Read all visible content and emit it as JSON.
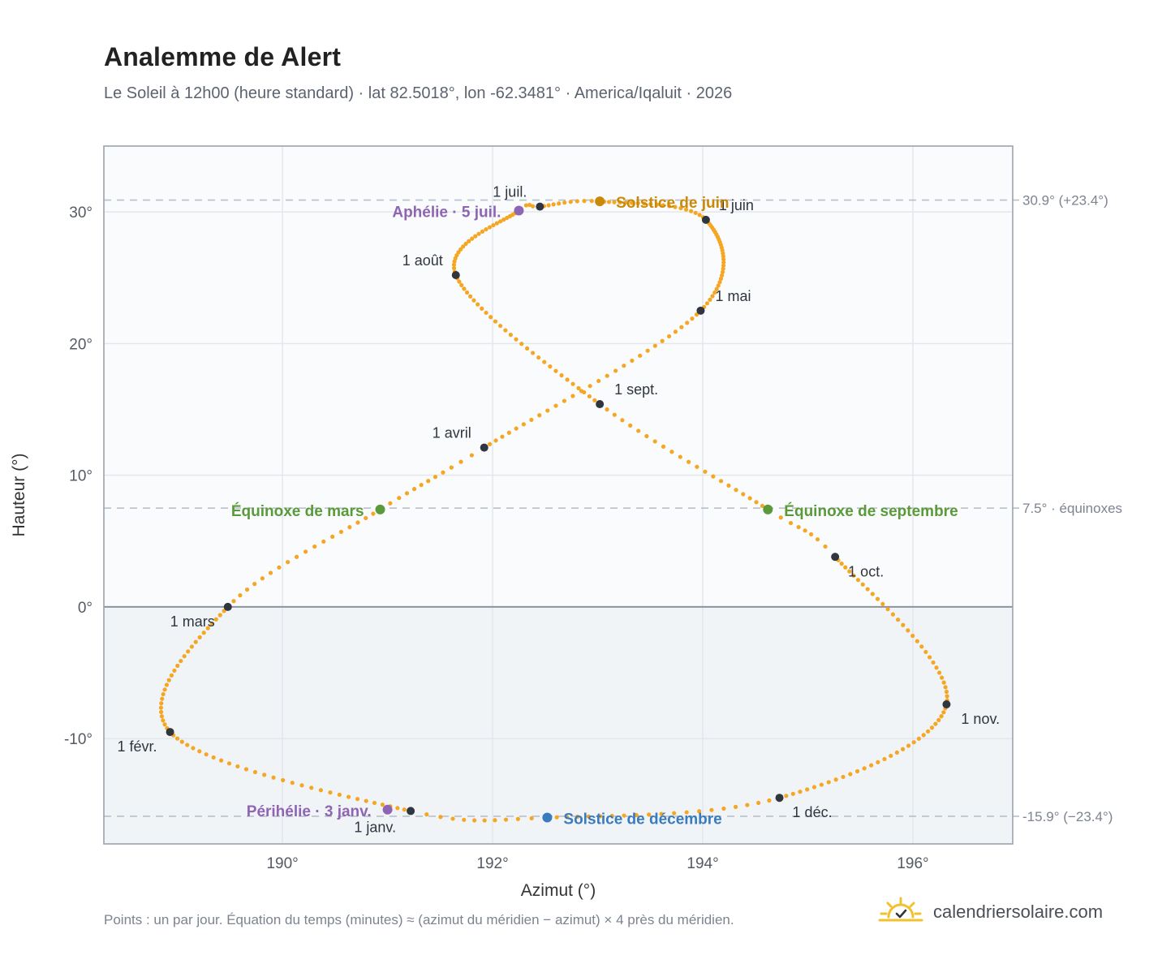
{
  "title": "Analemme de Alert",
  "subtitle": "Le Soleil à 12h00 (heure standard) · lat 82.5018°, lon -62.3481° · America/Iqaluit · 2026",
  "footnote": "Points : un par jour. Équation du temps (minutes) ≈ (azimut du méridien − azimut) × 4 près du méridien.",
  "brand": {
    "name": "calendriersolaire.com",
    "icon": "sun-logo-icon"
  },
  "colors": {
    "path": "#f5a623",
    "month_dot": "#2f3640",
    "june": "#c98a0a",
    "december": "#3a7bbf",
    "equinox": "#5a9a3a",
    "aphelion": "#8e65b3",
    "refline": "#b7c0cc",
    "above_bg": "#fafbfd",
    "below_bg": "#f1f4f7"
  },
  "chart_data": {
    "type": "scatter",
    "title": "Analemme de Alert",
    "xlabel": "Azimut (°)",
    "ylabel": "Hauteur (°)",
    "xlim": [
      188.3,
      196.95
    ],
    "ylim": [
      -18,
      35
    ],
    "xticks": [
      {
        "value": 190,
        "label": "190°"
      },
      {
        "value": 192,
        "label": "192°"
      },
      {
        "value": 194,
        "label": "194°"
      },
      {
        "value": 196,
        "label": "196°"
      }
    ],
    "yticks": [
      {
        "value": -10,
        "label": "-10°"
      },
      {
        "value": 0,
        "label": "0°"
      },
      {
        "value": 10,
        "label": "10°"
      },
      {
        "value": 20,
        "label": "20°"
      },
      {
        "value": 30,
        "label": "30°"
      }
    ],
    "grid": true,
    "horizon_altitude": 0,
    "ref_lines": [
      {
        "y": 30.9,
        "label": "30.9° (+23.4°)"
      },
      {
        "y": 7.5,
        "label": "7.5° · équinoxes"
      },
      {
        "y": -15.9,
        "label": "-15.9° (−23.4°)"
      }
    ],
    "path_anchors": [
      {
        "day": 1,
        "az": 191.22,
        "alt": -15.5
      },
      {
        "day": 32,
        "az": 188.93,
        "alt": -9.5
      },
      {
        "day": 60,
        "az": 189.48,
        "alt": 0.0
      },
      {
        "day": 79,
        "az": 190.93,
        "alt": 7.4
      },
      {
        "day": 91,
        "az": 191.92,
        "alt": 12.1
      },
      {
        "day": 121,
        "az": 193.98,
        "alt": 22.5
      },
      {
        "day": 152,
        "az": 194.03,
        "alt": 29.4
      },
      {
        "day": 172,
        "az": 193.02,
        "alt": 30.8
      },
      {
        "day": 182,
        "az": 192.45,
        "alt": 30.4
      },
      {
        "day": 186,
        "az": 192.25,
        "alt": 30.1
      },
      {
        "day": 213,
        "az": 191.65,
        "alt": 25.2
      },
      {
        "day": 244,
        "az": 193.02,
        "alt": 15.4
      },
      {
        "day": 266,
        "az": 194.62,
        "alt": 7.4
      },
      {
        "day": 274,
        "az": 195.26,
        "alt": 3.8
      },
      {
        "day": 305,
        "az": 196.32,
        "alt": -7.4
      },
      {
        "day": 335,
        "az": 194.73,
        "alt": -14.5
      },
      {
        "day": 355,
        "az": 192.52,
        "alt": -16.0
      },
      {
        "day": 366,
        "az": 191.22,
        "alt": -15.5
      }
    ],
    "month_markers": [
      {
        "label": "1 janv.",
        "az": 191.22,
        "alt": -15.5
      },
      {
        "label": "1 févr.",
        "az": 188.93,
        "alt": -9.5
      },
      {
        "label": "1 mars",
        "az": 189.48,
        "alt": 0.0
      },
      {
        "label": "1 avril",
        "az": 191.92,
        "alt": 12.1
      },
      {
        "label": "1 mai",
        "az": 193.98,
        "alt": 22.5
      },
      {
        "label": "1 juin",
        "az": 194.03,
        "alt": 29.4
      },
      {
        "label": "1 juil.",
        "az": 192.45,
        "alt": 30.4
      },
      {
        "label": "1 août",
        "az": 191.65,
        "alt": 25.2
      },
      {
        "label": "1 sept.",
        "az": 193.02,
        "alt": 15.4
      },
      {
        "label": "1 oct.",
        "az": 195.26,
        "alt": 3.8
      },
      {
        "label": "1 nov.",
        "az": 196.32,
        "alt": -7.4
      },
      {
        "label": "1 déc.",
        "az": 194.73,
        "alt": -14.5
      }
    ],
    "events": [
      {
        "label": "Solstice de juin",
        "az": 193.02,
        "alt": 30.8,
        "kind": "june"
      },
      {
        "label": "Aphélie · 5 juil.",
        "az": 192.25,
        "alt": 30.1,
        "kind": "aphelion"
      },
      {
        "label": "Équinoxe de mars",
        "az": 190.93,
        "alt": 7.4,
        "kind": "equinox"
      },
      {
        "label": "Équinoxe de septembre",
        "az": 194.62,
        "alt": 7.4,
        "kind": "equinox"
      },
      {
        "label": "Périhélie · 3 janv.",
        "az": 191.0,
        "alt": -15.4,
        "kind": "aphelion"
      },
      {
        "label": "Solstice de décembre",
        "az": 192.52,
        "alt": -16.0,
        "kind": "december"
      }
    ]
  }
}
